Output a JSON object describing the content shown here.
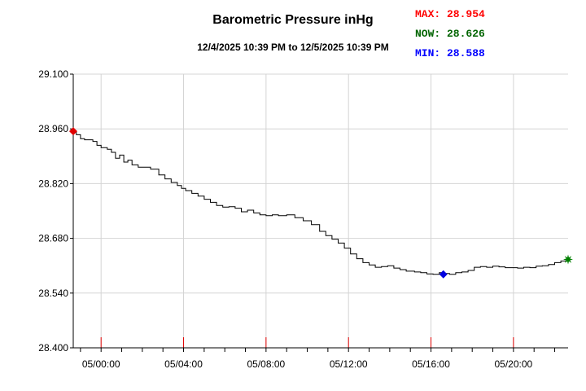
{
  "chart_data": {
    "type": "line",
    "title": "Barometric Pressure inHg",
    "subtitle": "12/4/2025 10:39 PM to 12/5/2025 10:39 PM",
    "stats": [
      {
        "label": "MAX: 28.954",
        "color": "#ff0000"
      },
      {
        "label": "NOW: 28.626",
        "color": "#006400"
      },
      {
        "label": "MIN: 28.588",
        "color": "#0000ff"
      }
    ],
    "ylim": [
      28.4,
      29.1
    ],
    "y_ticks": [
      "29.100",
      "28.960",
      "28.820",
      "28.680",
      "28.540",
      "28.400"
    ],
    "x_tick_labels": [
      "05/00:00",
      "05/04:00",
      "05/08:00",
      "05/12:00",
      "05/16:00",
      "05/20:00"
    ],
    "x_ticks_hours": [
      0,
      4,
      8,
      12,
      16,
      20
    ],
    "xlim_hours": [
      -1.35,
      22.65
    ],
    "grid": true,
    "series": [
      {
        "color": "#000000",
        "x": [
          -1.35,
          -1.2,
          -1.0,
          -0.8,
          -0.4,
          -0.2,
          0.0,
          0.3,
          0.5,
          0.7,
          0.9,
          1.1,
          1.3,
          1.5,
          1.8,
          2.1,
          2.4,
          2.8,
          3.1,
          3.4,
          3.7,
          3.9,
          4.1,
          4.4,
          4.7,
          5.0,
          5.3,
          5.6,
          5.9,
          6.2,
          6.5,
          6.8,
          7.1,
          7.4,
          7.7,
          8.0,
          8.3,
          8.6,
          9.0,
          9.4,
          9.8,
          10.2,
          10.6,
          10.9,
          11.2,
          11.5,
          11.8,
          12.1,
          12.4,
          12.7,
          13.0,
          13.3,
          13.6,
          13.9,
          14.2,
          14.5,
          14.8,
          15.2,
          15.5,
          15.8,
          16.1,
          16.4,
          16.6,
          16.9,
          17.2,
          17.5,
          17.8,
          18.1,
          18.4,
          18.7,
          19.0,
          19.3,
          19.6,
          19.9,
          20.2,
          20.5,
          20.8,
          21.1,
          21.4,
          21.7,
          22.0,
          22.3,
          22.65
        ],
        "y": [
          28.954,
          28.945,
          28.935,
          28.932,
          28.928,
          28.918,
          28.912,
          28.908,
          28.9,
          28.885,
          28.893,
          28.875,
          28.88,
          28.868,
          28.862,
          28.862,
          28.857,
          28.842,
          28.832,
          28.823,
          28.815,
          28.808,
          28.802,
          28.795,
          28.788,
          28.78,
          28.772,
          28.764,
          28.76,
          28.761,
          28.757,
          28.748,
          28.752,
          28.745,
          28.74,
          28.738,
          28.74,
          28.738,
          28.74,
          28.733,
          28.725,
          28.715,
          28.698,
          28.687,
          28.678,
          28.668,
          28.655,
          28.64,
          28.628,
          28.618,
          28.612,
          28.606,
          28.608,
          28.61,
          28.604,
          28.6,
          28.596,
          28.594,
          28.592,
          28.589,
          28.588,
          28.592,
          28.59,
          28.588,
          28.592,
          28.594,
          28.598,
          28.606,
          28.608,
          28.606,
          28.609,
          28.607,
          28.605,
          28.605,
          28.604,
          28.606,
          28.605,
          28.609,
          28.61,
          28.613,
          28.618,
          28.622,
          28.626
        ]
      }
    ],
    "markers": [
      {
        "name": "max",
        "x": -1.35,
        "y": 28.954,
        "shape": "diamond",
        "color": "#e00000"
      },
      {
        "name": "min",
        "x": 16.6,
        "y": 28.588,
        "shape": "diamond",
        "color": "#0000e0"
      },
      {
        "name": "now",
        "x": 22.65,
        "y": 28.626,
        "shape": "star",
        "color": "#008000"
      }
    ]
  }
}
